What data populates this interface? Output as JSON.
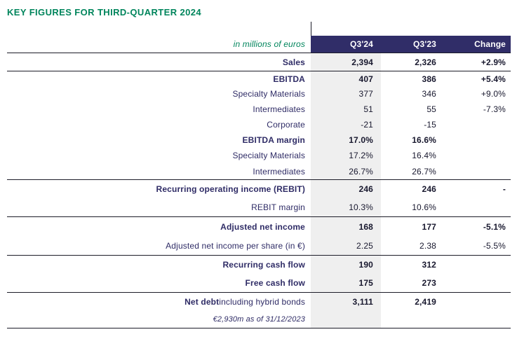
{
  "header": {
    "title": "KEY FIGURES FOR THIRD-QUARTER 2024"
  },
  "table": {
    "unit_label": "in millions of euros",
    "columns": [
      "Q3'24",
      "Q3'23",
      "Change"
    ],
    "rows": [
      {
        "label": "Sales",
        "q324": "2,394",
        "q323": "2,326",
        "change": "+2.9%"
      },
      {
        "label": "EBITDA",
        "q324": "407",
        "q323": "386",
        "change": "+5.4%"
      },
      {
        "label": "Specialty Materials",
        "q324": "377",
        "q323": "346",
        "change": "+9.0%"
      },
      {
        "label": "Intermediates",
        "q324": "51",
        "q323": "55",
        "change": "-7.3%"
      },
      {
        "label": "Corporate",
        "q324": "-21",
        "q323": "-15",
        "change": ""
      },
      {
        "label": "EBITDA margin",
        "q324": "17.0%",
        "q323": "16.6%",
        "change": ""
      },
      {
        "label": "Specialty Materials",
        "q324": "17.2%",
        "q323": "16.4%",
        "change": ""
      },
      {
        "label": "Intermediates",
        "q324": "26.7%",
        "q323": "26.7%",
        "change": ""
      },
      {
        "label": "Recurring operating income (REBIT)",
        "q324": "246",
        "q323": "246",
        "change": "-"
      },
      {
        "label": "REBIT margin",
        "q324": "10.3%",
        "q323": "10.6%",
        "change": ""
      },
      {
        "label": "Adjusted net income",
        "q324": "168",
        "q323": "177",
        "change": "-5.1%"
      },
      {
        "label": "Adjusted net income per share (in €)",
        "q324": "2.25",
        "q323": "2.38",
        "change": "-5.5%"
      },
      {
        "label": "Recurring cash flow",
        "q324": "190",
        "q323": "312",
        "change": ""
      },
      {
        "label": "Free cash flow",
        "q324": "175",
        "q323": "273",
        "change": ""
      },
      {
        "label_bold": "Net debt",
        "label_rest": " including hybrid bonds",
        "q324": "3,111",
        "q323": "2,419",
        "change": ""
      },
      {
        "label": "€2,930m as of 31/12/2023",
        "q324": "",
        "q323": "",
        "change": ""
      }
    ]
  },
  "colors": {
    "accent_green": "#00855C",
    "header_navy": "#302D68",
    "label_navy": "#2F2C66",
    "q324_column_bg": "#EFEFEF",
    "line": "#1C1C28"
  }
}
